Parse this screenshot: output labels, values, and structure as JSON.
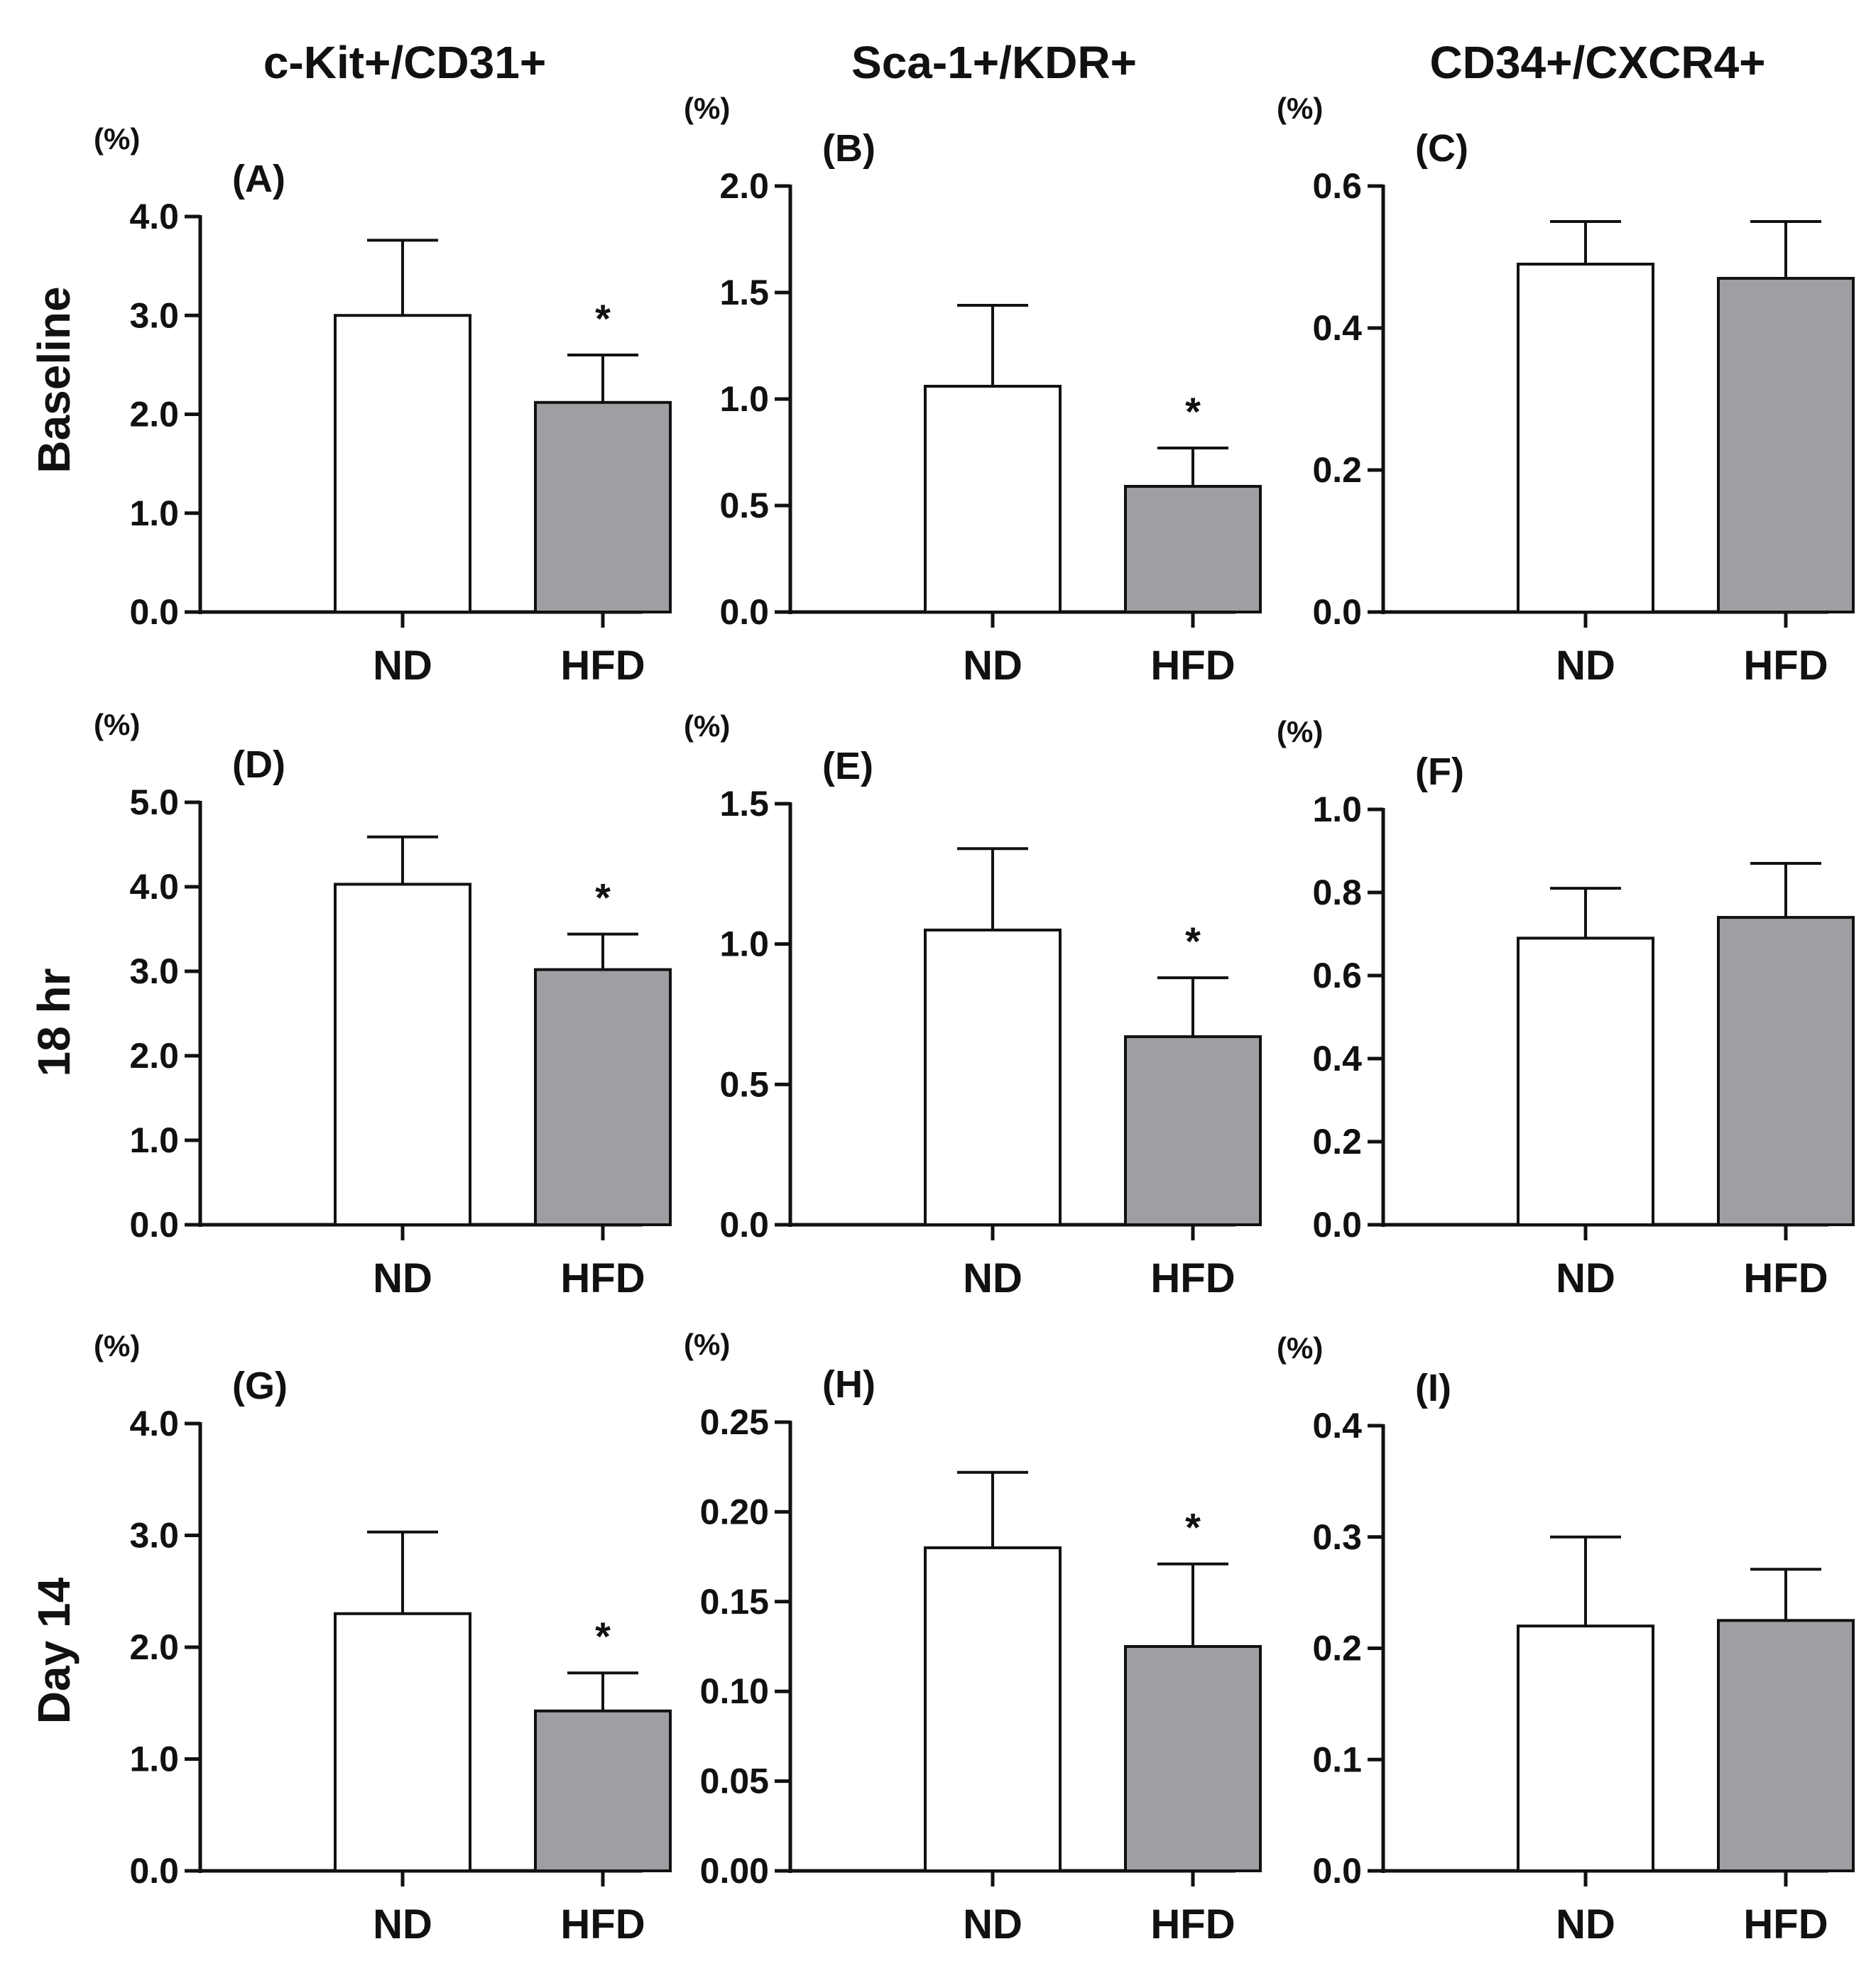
{
  "column_titles": [
    "c-Kit+/CD31+",
    "Sca-1+/KDR+",
    "CD34+/CXCR4+"
  ],
  "row_titles": [
    "Baseline",
    "18 hr",
    "Day 14"
  ],
  "colors": {
    "nd_bar": "#ffffff",
    "hfd_bar": "#a09ea3",
    "stroke": "#111111"
  },
  "chart_data": [
    {
      "type": "bar",
      "panel": "(A)",
      "row": "Baseline",
      "column": "c-Kit+/CD31+",
      "unit": "(%)",
      "categories": [
        "ND",
        "HFD"
      ],
      "values": [
        3.0,
        2.12
      ],
      "errors": [
        0.76,
        0.48
      ],
      "significance": [
        "",
        "*"
      ],
      "ylim": [
        0,
        4.0
      ],
      "yticks": [
        0,
        1,
        2,
        3,
        4
      ],
      "ytick_labels": [
        "0.0",
        "1.0",
        "2.0",
        "3.0",
        "4.0"
      ]
    },
    {
      "type": "bar",
      "panel": "(B)",
      "row": "Baseline",
      "column": "Sca-1+/KDR+",
      "unit": "(%)",
      "categories": [
        "ND",
        "HFD"
      ],
      "values": [
        1.06,
        0.59
      ],
      "errors": [
        0.38,
        0.18
      ],
      "significance": [
        "",
        "*"
      ],
      "ylim": [
        0,
        2.0
      ],
      "yticks": [
        0,
        0.5,
        1.0,
        1.5,
        2.0
      ],
      "ytick_labels": [
        "0.0",
        "0.5",
        "1.0",
        "1.5",
        "2.0"
      ]
    },
    {
      "type": "bar",
      "panel": "(C)",
      "row": "Baseline",
      "column": "CD34+/CXCR4+",
      "unit": "(%)",
      "categories": [
        "ND",
        "HFD"
      ],
      "values": [
        0.49,
        0.47
      ],
      "errors": [
        0.06,
        0.08
      ],
      "significance": [
        "",
        ""
      ],
      "ylim": [
        0,
        0.6
      ],
      "yticks": [
        0,
        0.2,
        0.4,
        0.6
      ],
      "ytick_labels": [
        "0.0",
        "0.2",
        "0.4",
        "0.6"
      ]
    },
    {
      "type": "bar",
      "panel": "(D)",
      "row": "18 hr",
      "column": "c-Kit+/CD31+",
      "unit": "(%)",
      "categories": [
        "ND",
        "HFD"
      ],
      "values": [
        4.03,
        3.02
      ],
      "errors": [
        0.56,
        0.42
      ],
      "significance": [
        "",
        "*"
      ],
      "ylim": [
        0,
        5.0
      ],
      "yticks": [
        0,
        1,
        2,
        3,
        4,
        5
      ],
      "ytick_labels": [
        "0.0",
        "1.0",
        "2.0",
        "3.0",
        "4.0",
        "5.0"
      ]
    },
    {
      "type": "bar",
      "panel": "(E)",
      "row": "18 hr",
      "column": "Sca-1+/KDR+",
      "unit": "(%)",
      "categories": [
        "ND",
        "HFD"
      ],
      "values": [
        1.05,
        0.67
      ],
      "errors": [
        0.29,
        0.21
      ],
      "significance": [
        "",
        "*"
      ],
      "ylim": [
        0,
        1.5
      ],
      "yticks": [
        0,
        0.5,
        1.0,
        1.5
      ],
      "ytick_labels": [
        "0.0",
        "0.5",
        "1.0",
        "1.5"
      ]
    },
    {
      "type": "bar",
      "panel": "(F)",
      "row": "18 hr",
      "column": "CD34+/CXCR4+",
      "unit": "(%)",
      "categories": [
        "ND",
        "HFD"
      ],
      "values": [
        0.69,
        0.74
      ],
      "errors": [
        0.12,
        0.13
      ],
      "significance": [
        "",
        ""
      ],
      "ylim": [
        0,
        1.0
      ],
      "yticks": [
        0,
        0.2,
        0.4,
        0.6,
        0.8,
        1.0
      ],
      "ytick_labels": [
        "0.0",
        "0.2",
        "0.4",
        "0.6",
        "0.8",
        "1.0"
      ]
    },
    {
      "type": "bar",
      "panel": "(G)",
      "row": "Day 14",
      "column": "c-Kit+/CD31+",
      "unit": "(%)",
      "categories": [
        "ND",
        "HFD"
      ],
      "values": [
        2.3,
        1.43
      ],
      "errors": [
        0.73,
        0.34
      ],
      "significance": [
        "",
        "*"
      ],
      "ylim": [
        0,
        4.0
      ],
      "yticks": [
        0,
        1,
        2,
        3,
        4
      ],
      "ytick_labels": [
        "0.0",
        "1.0",
        "2.0",
        "3.0",
        "4.0"
      ]
    },
    {
      "type": "bar",
      "panel": "(H)",
      "row": "Day 14",
      "column": "Sca-1+/KDR+",
      "unit": "(%)",
      "categories": [
        "ND",
        "HFD"
      ],
      "values": [
        0.18,
        0.125
      ],
      "errors": [
        0.042,
        0.046
      ],
      "significance": [
        "",
        "*"
      ],
      "ylim": [
        0,
        0.25
      ],
      "yticks": [
        0,
        0.05,
        0.1,
        0.15,
        0.2,
        0.25
      ],
      "ytick_labels": [
        "0.00",
        "0.05",
        "0.10",
        "0.15",
        "0.20",
        "0.25"
      ]
    },
    {
      "type": "bar",
      "panel": "(I)",
      "row": "Day 14",
      "column": "CD34+/CXCR4+",
      "unit": "(%)",
      "categories": [
        "ND",
        "HFD"
      ],
      "values": [
        0.22,
        0.225
      ],
      "errors": [
        0.08,
        0.046
      ],
      "significance": [
        "",
        ""
      ],
      "ylim": [
        0,
        0.4
      ],
      "yticks": [
        0,
        0.1,
        0.2,
        0.3,
        0.4
      ],
      "ytick_labels": [
        "0.0",
        "0.1",
        "0.2",
        "0.3",
        "0.4"
      ]
    }
  ]
}
